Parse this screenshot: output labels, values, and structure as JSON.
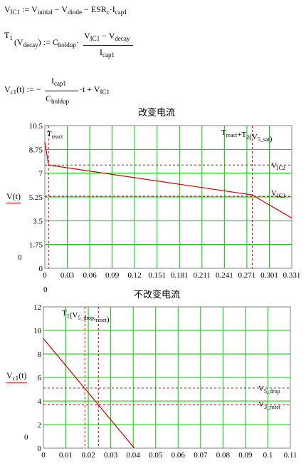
{
  "equations": {
    "eq1": {
      "lhs": "V",
      "lhs_sub": "IC1",
      "assign": ":=",
      "rhs": [
        "V",
        "initial",
        "−",
        "V",
        "diode",
        "−",
        "ESR",
        "c",
        "·I",
        "cap1"
      ]
    },
    "eq2": {
      "lhs": "T",
      "lhs_sub": "1",
      "arg": "V",
      "arg_sub": "decay",
      "assign": ":=",
      "factor": "C",
      "factor_sub": "holdup",
      "num": [
        "V",
        "IC1",
        "−",
        "V",
        "decay"
      ],
      "den": [
        "I",
        "cap1"
      ]
    },
    "eq3": {
      "lhs": "V",
      "lhs_sub": "c1",
      "arg": "(t)",
      "assign": ":=",
      "sign": "−",
      "num": [
        "I",
        "cap1"
      ],
      "den": [
        "C",
        "holdup"
      ],
      "tail": "·t + V",
      "tail_sub": "IC1"
    }
  },
  "chart_data": [
    {
      "type": "line",
      "title": "改变电流",
      "ylabel": "V(t)",
      "ylabel_zero": "0",
      "xlabel_zero": "0",
      "x_ticks": [
        "0",
        "0.03",
        "0.06",
        "0.09",
        "0.12",
        "0.151",
        "0.181",
        "0.211",
        "0.241",
        "0.271",
        "0.301",
        "0.331"
      ],
      "y_ticks": [
        "0",
        "1.75",
        "3.5",
        "5.25",
        "7",
        "8.75",
        "10.5"
      ],
      "xlim": [
        0,
        0.331
      ],
      "ylim": [
        0,
        10.5
      ],
      "grid": true,
      "series": [
        {
          "x": [
            0,
            0.005,
            0.278,
            0.331
          ],
          "y": [
            9.3,
            7.6,
            5.4,
            3.7
          ]
        }
      ],
      "reference_lines": [
        {
          "orientation": "vertical",
          "x": 0.005,
          "label": "T",
          "label_sub": "react"
        },
        {
          "orientation": "vertical",
          "x": 0.278,
          "label": "T",
          "label_sub": "react",
          "label_plus": "+T",
          "label_sub2": "2",
          "label_arg": "V",
          "label_arg_sub": "5_sat"
        },
        {
          "orientation": "horizontal",
          "y": 7.6,
          "label": "V",
          "label_sub": "IC2"
        },
        {
          "orientation": "horizontal",
          "y": 5.3,
          "label": "V",
          "label_sub": "IC3"
        }
      ],
      "colors": {
        "grid": "#00cc00",
        "series": "#cc0000",
        "reference": "#cc0000",
        "axis": "#808080"
      }
    },
    {
      "type": "line",
      "title": "不改变电流",
      "ylabel": "V",
      "ylabel_sub": "c1",
      "ylabel_arg": "(t)",
      "ylabel_zero": "0",
      "x_ticks": [
        "0",
        "0.01",
        "0.02",
        "0.03",
        "0.04",
        "0.05",
        "0.06",
        "0.07",
        "0.08",
        "0.09",
        "0.1",
        "0.11"
      ],
      "y_ticks": [
        "0",
        "2",
        "4",
        "6",
        "8",
        "10",
        "12"
      ],
      "xlim": [
        0,
        0.11
      ],
      "ylim": [
        0,
        12
      ],
      "grid": true,
      "series": [
        {
          "x": [
            0,
            0.0405
          ],
          "y": [
            9.3,
            0
          ]
        }
      ],
      "reference_lines": [
        {
          "orientation": "vertical",
          "x": 0.0185,
          "label": "T",
          "label_sub": "1",
          "label_arg": "V",
          "label_arg_sub": "5_drop",
          "label_arg2_sub": "reset"
        },
        {
          "orientation": "vertical",
          "x": 0.0245
        },
        {
          "orientation": "horizontal",
          "y": 5.1,
          "label": "V",
          "label_sub": "5_drop"
        },
        {
          "orientation": "horizontal",
          "y": 3.7,
          "label": "V",
          "label_sub": "3_reset"
        }
      ],
      "colors": {
        "grid": "#00cc00",
        "series": "#cc0000",
        "reference": "#cc0000",
        "axis": "#808080"
      }
    }
  ]
}
